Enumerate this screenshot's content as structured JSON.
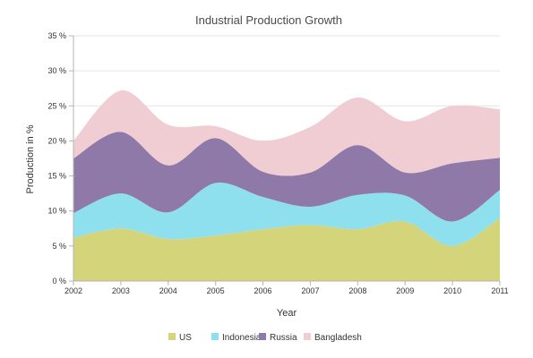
{
  "chart_data": {
    "type": "area",
    "stacked": true,
    "smooth": true,
    "title": "Industrial Production Growth",
    "xlabel": "Year",
    "ylabel": "Production in %",
    "x": [
      2002,
      2003,
      2004,
      2005,
      2006,
      2007,
      2008,
      2009,
      2010,
      2011
    ],
    "x_ticks": [
      "2002",
      "2003",
      "2004",
      "2005",
      "2006",
      "2007",
      "2008",
      "2009",
      "2010",
      "2011"
    ],
    "ylim": [
      0,
      35
    ],
    "y_ticks": [
      "0 %",
      "5 %",
      "10 %",
      "15 %",
      "20 %",
      "25 %",
      "30 %",
      "35 %"
    ],
    "grid": true,
    "legend_position": "bottom",
    "series": [
      {
        "name": "US",
        "color": "#d4d47a",
        "values": [
          6.2,
          7.5,
          6.0,
          6.5,
          7.4,
          8.0,
          7.4,
          8.5,
          5.0,
          9.0
        ]
      },
      {
        "name": "Indonesia",
        "color": "#8fe0ef",
        "values": [
          3.5,
          5.0,
          3.8,
          7.5,
          4.6,
          2.6,
          4.9,
          3.7,
          3.5,
          4.0
        ]
      },
      {
        "name": "Russia",
        "color": "#8f79a8",
        "values": [
          7.8,
          8.8,
          6.7,
          6.4,
          3.6,
          4.9,
          7.1,
          3.3,
          8.3,
          4.6
        ]
      },
      {
        "name": "Bangladesh",
        "color": "#f0cdd3",
        "values": [
          2.5,
          5.9,
          5.8,
          1.7,
          4.4,
          6.5,
          6.8,
          7.3,
          8.2,
          6.9
        ]
      }
    ]
  }
}
